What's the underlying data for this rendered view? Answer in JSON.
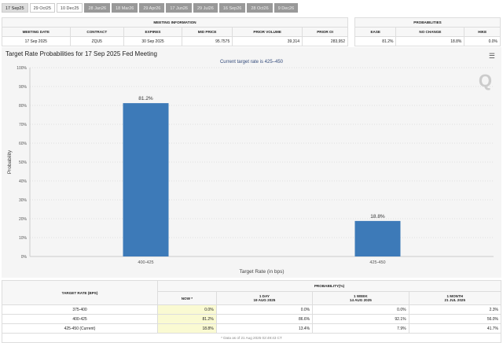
{
  "tabs": [
    {
      "label": "17 Sep25",
      "state": "active"
    },
    {
      "label": "29 Oct25",
      "state": "normal"
    },
    {
      "label": "10 Dec25",
      "state": "normal"
    },
    {
      "label": "28 Jan26",
      "state": "future"
    },
    {
      "label": "18 Mar26",
      "state": "future"
    },
    {
      "label": "29 Apr26",
      "state": "future"
    },
    {
      "label": "17 Jun26",
      "state": "future"
    },
    {
      "label": "29 Jul26",
      "state": "future"
    },
    {
      "label": "16 Sep26",
      "state": "future"
    },
    {
      "label": "28 Oct26",
      "state": "future"
    },
    {
      "label": "9 Dec26",
      "state": "future"
    }
  ],
  "meeting": {
    "title": "MEETING INFORMATION",
    "headers": [
      "MEETING DATE",
      "CONTRACT",
      "EXPIRES",
      "MID PRICE",
      "PRIOR VOLUME",
      "PRIOR OI"
    ],
    "values": [
      "17 Sep 2025",
      "ZQU5",
      "30 Sep 2025",
      "95.7575",
      "39,314",
      "283,952"
    ]
  },
  "probabilities": {
    "title": "PROBABILITIES",
    "headers": [
      "EASE",
      "NO CHANGE",
      "HIKE"
    ],
    "values": [
      "81.2%",
      "18.8%",
      "0.0%"
    ]
  },
  "chart_data": {
    "type": "bar",
    "title": "Target Rate Probabilities for 17 Sep 2025 Fed Meeting",
    "subtitle": "Current target rate is 425–450",
    "xlabel": "Target Rate (in bps)",
    "ylabel": "Probability",
    "categories": [
      "400-425",
      "425-450"
    ],
    "values": [
      81.2,
      18.8
    ],
    "data_labels": [
      "81.2%",
      "18.8%"
    ],
    "ylim": [
      0,
      100
    ],
    "yticks": [
      "0%",
      "10%",
      "20%",
      "30%",
      "40%",
      "50%",
      "60%",
      "70%",
      "80%",
      "90%",
      "100%"
    ],
    "grid": true,
    "bar_color": "#3d7ab8"
  },
  "bottom": {
    "col_header": "TARGET RATE (BPS)",
    "group_header": "PROBABILITY(%)",
    "subheaders": [
      {
        "l1": "NOW *",
        "l2": ""
      },
      {
        "l1": "1 DAY",
        "l2": "19 AUG 2025"
      },
      {
        "l1": "1 WEEK",
        "l2": "14 AUG 2025"
      },
      {
        "l1": "1 MONTH",
        "l2": "21 JUL 2025"
      }
    ],
    "rows": [
      {
        "rate": "375-400",
        "vals": [
          "0.0%",
          "0.0%",
          "0.0%",
          "2.3%"
        ]
      },
      {
        "rate": "400-425",
        "vals": [
          "81.2%",
          "86.6%",
          "92.1%",
          "56.0%"
        ]
      },
      {
        "rate": "425-450 (Current)",
        "vals": [
          "18.8%",
          "13.4%",
          "7.9%",
          "41.7%"
        ]
      }
    ],
    "footnote": "* Data as of 21 Aug 2025 02:49:43 CT"
  }
}
